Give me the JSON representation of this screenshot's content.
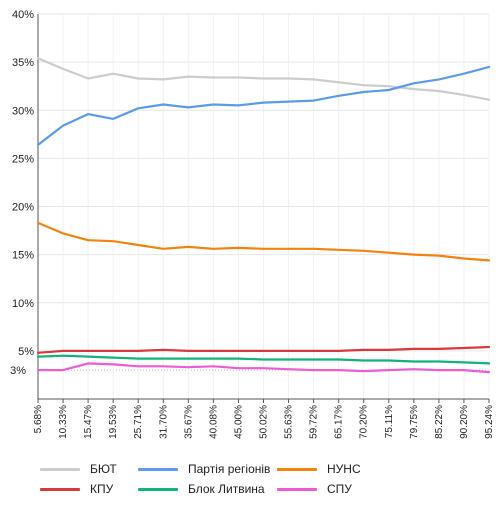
{
  "chart_data": {
    "type": "line",
    "title": "",
    "xlabel": "",
    "ylabel": "",
    "ylim": [
      0,
      40
    ],
    "y_ticks": [
      {
        "value": 5,
        "label": "5%"
      },
      {
        "value": 10,
        "label": "10%"
      },
      {
        "value": 15,
        "label": "15%"
      },
      {
        "value": 20,
        "label": "20%"
      },
      {
        "value": 25,
        "label": "25%"
      },
      {
        "value": 30,
        "label": "30%"
      },
      {
        "value": 35,
        "label": "35%"
      },
      {
        "value": 40,
        "label": "40%"
      }
    ],
    "reference_line": {
      "value": 3,
      "label": "3%",
      "style": "dotted"
    },
    "categories": [
      "5.68%",
      "10.33%",
      "15.47%",
      "19.53%",
      "25.71%",
      "31.70%",
      "35.67%",
      "40.08%",
      "45.00%",
      "50.02%",
      "55.63%",
      "59.72%",
      "65.17%",
      "70.20%",
      "75.11%",
      "79.75%",
      "85.22%",
      "90.20%",
      "95.24%"
    ],
    "grid": true,
    "legend_position": "bottom",
    "series": [
      {
        "name": "БЮТ",
        "color": "#cccccc",
        "values": [
          35.4,
          34.3,
          33.3,
          33.8,
          33.3,
          33.2,
          33.5,
          33.4,
          33.4,
          33.3,
          33.3,
          33.2,
          32.9,
          32.6,
          32.5,
          32.2,
          32.0,
          31.6,
          31.1
        ]
      },
      {
        "name": "Партія регіонів",
        "color": "#5b9bea",
        "values": [
          26.4,
          28.4,
          29.6,
          29.1,
          30.2,
          30.6,
          30.3,
          30.6,
          30.5,
          30.8,
          30.9,
          31.0,
          31.5,
          31.9,
          32.1,
          32.8,
          33.2,
          33.8,
          34.5
        ]
      },
      {
        "name": "НУНС",
        "color": "#f5820f",
        "values": [
          18.3,
          17.2,
          16.5,
          16.4,
          16.0,
          15.6,
          15.8,
          15.6,
          15.7,
          15.6,
          15.6,
          15.6,
          15.5,
          15.4,
          15.2,
          15.0,
          14.9,
          14.6,
          14.4
        ]
      },
      {
        "name": "КПУ",
        "color": "#d8393a",
        "values": [
          4.8,
          5.0,
          5.0,
          5.0,
          5.0,
          5.1,
          5.0,
          5.0,
          5.0,
          5.0,
          5.0,
          5.0,
          5.0,
          5.1,
          5.1,
          5.2,
          5.2,
          5.3,
          5.4
        ]
      },
      {
        "name": "Блок Литвина",
        "color": "#12b27a",
        "values": [
          4.4,
          4.5,
          4.4,
          4.3,
          4.2,
          4.2,
          4.2,
          4.2,
          4.2,
          4.1,
          4.1,
          4.1,
          4.1,
          4.0,
          4.0,
          3.9,
          3.9,
          3.8,
          3.7
        ]
      },
      {
        "name": "СПУ",
        "color": "#ee5bd6",
        "values": [
          3.0,
          3.0,
          3.7,
          3.6,
          3.4,
          3.4,
          3.3,
          3.4,
          3.2,
          3.2,
          3.1,
          3.0,
          3.0,
          2.9,
          3.0,
          3.1,
          3.0,
          3.0,
          2.8
        ]
      }
    ]
  }
}
